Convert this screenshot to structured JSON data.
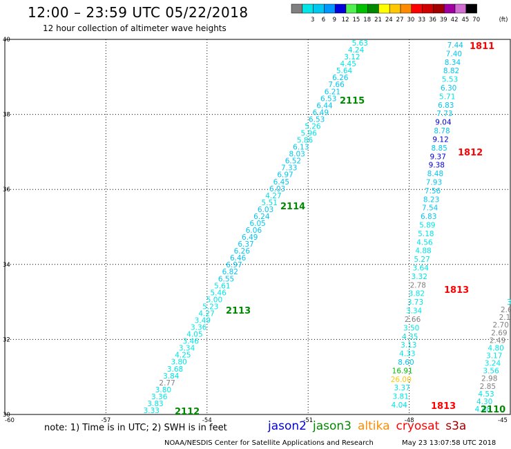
{
  "header": {
    "title": "12:00 – 23:59 UTC 05/22/2018",
    "subtitle": "12 hour collection of altimeter wave heights"
  },
  "legend": {
    "unit": "(ft)",
    "bins": [
      {
        "label": "",
        "color": "#808080"
      },
      {
        "label": "3",
        "color": "#00e5e5"
      },
      {
        "label": "6",
        "color": "#00c8f0"
      },
      {
        "label": "9",
        "color": "#0096ff"
      },
      {
        "label": "12",
        "color": "#0000dd"
      },
      {
        "label": "15",
        "color": "#50f050"
      },
      {
        "label": "18",
        "color": "#00c000"
      },
      {
        "label": "21",
        "color": "#008800"
      },
      {
        "label": "24",
        "color": "#ffff00"
      },
      {
        "label": "27",
        "color": "#ffc800"
      },
      {
        "label": "30",
        "color": "#ff8c00"
      },
      {
        "label": "33",
        "color": "#ff0000"
      },
      {
        "label": "36",
        "color": "#d00000"
      },
      {
        "label": "39",
        "color": "#a00000"
      },
      {
        "label": "42",
        "color": "#a000a0"
      },
      {
        "label": "45",
        "color": "#d26ed2"
      },
      {
        "label": "70",
        "color": "#000000"
      }
    ]
  },
  "axes": {
    "lon_ticks": [
      "-60",
      "-57",
      "-54",
      "-51",
      "-48",
      "-45"
    ],
    "lat_ticks": [
      "30",
      "32",
      "34",
      "36",
      "38",
      "40"
    ],
    "lon_range": [
      -60,
      -45
    ],
    "lat_range": [
      30,
      40
    ]
  },
  "track_labels": [
    {
      "text": "2115",
      "color": "#008800"
    },
    {
      "text": "2114",
      "color": "#008800"
    },
    {
      "text": "2113",
      "color": "#008800"
    },
    {
      "text": "2112",
      "color": "#008800"
    },
    {
      "text": "1811",
      "color": "#ff0000"
    },
    {
      "text": "1812",
      "color": "#ff0000"
    },
    {
      "text": "1813",
      "color": "#ff0000"
    },
    {
      "text": "1813",
      "color": "#ff0000"
    },
    {
      "text": "2110",
      "color": "#008800"
    }
  ],
  "tracks": [
    {
      "name": "jason3 descending track",
      "values": [
        {
          "v": "5.63",
          "c": "#00e5e5"
        },
        {
          "v": "4.24",
          "c": "#00e5e5"
        },
        {
          "v": "3.12",
          "c": "#00e5e5"
        },
        {
          "v": "4.45",
          "c": "#00e5e5"
        },
        {
          "v": "5.64",
          "c": "#00e5e5"
        },
        {
          "v": "6.26",
          "c": "#00c8f0"
        },
        {
          "v": "7.66",
          "c": "#00c8f0"
        },
        {
          "v": "6.21",
          "c": "#00c8f0"
        },
        {
          "v": "6.53",
          "c": "#00c8f0"
        },
        {
          "v": "6.44",
          "c": "#00c8f0"
        },
        {
          "v": "6.49",
          "c": "#00c8f0"
        },
        {
          "v": "6.53",
          "c": "#00c8f0"
        },
        {
          "v": "5.26",
          "c": "#00e5e5"
        },
        {
          "v": "5.96",
          "c": "#00e5e5"
        },
        {
          "v": "5.86",
          "c": "#00e5e5"
        },
        {
          "v": "6.13",
          "c": "#00c8f0"
        },
        {
          "v": "8.03",
          "c": "#00c8f0"
        },
        {
          "v": "6.52",
          "c": "#00c8f0"
        },
        {
          "v": "7.33",
          "c": "#00c8f0"
        },
        {
          "v": "6.97",
          "c": "#00c8f0"
        },
        {
          "v": "6.45",
          "c": "#00c8f0"
        },
        {
          "v": "6.03",
          "c": "#00c8f0"
        },
        {
          "v": "4.27",
          "c": "#00e5e5"
        },
        {
          "v": "5.51",
          "c": "#00e5e5"
        },
        {
          "v": "6.03",
          "c": "#00c8f0"
        },
        {
          "v": "6.24",
          "c": "#00c8f0"
        },
        {
          "v": "6.05",
          "c": "#00c8f0"
        },
        {
          "v": "6.06",
          "c": "#00c8f0"
        },
        {
          "v": "6.49",
          "c": "#00c8f0"
        },
        {
          "v": "6.37",
          "c": "#00c8f0"
        },
        {
          "v": "6.26",
          "c": "#00c8f0"
        },
        {
          "v": "6.46",
          "c": "#00c8f0"
        },
        {
          "v": "6.97",
          "c": "#00c8f0"
        },
        {
          "v": "6.82",
          "c": "#00c8f0"
        },
        {
          "v": "6.55",
          "c": "#00c8f0"
        },
        {
          "v": "5.61",
          "c": "#00e5e5"
        },
        {
          "v": "5.46",
          "c": "#00e5e5"
        },
        {
          "v": "5.00",
          "c": "#00e5e5"
        },
        {
          "v": "5.23",
          "c": "#00e5e5"
        },
        {
          "v": "4.27",
          "c": "#00e5e5"
        },
        {
          "v": "3.49",
          "c": "#00e5e5"
        },
        {
          "v": "3.36",
          "c": "#00e5e5"
        },
        {
          "v": "4.05",
          "c": "#00e5e5"
        },
        {
          "v": "3.46",
          "c": "#00e5e5"
        },
        {
          "v": "3.34",
          "c": "#00e5e5"
        },
        {
          "v": "4.25",
          "c": "#00e5e5"
        },
        {
          "v": "3.80",
          "c": "#00e5e5"
        },
        {
          "v": "3.68",
          "c": "#00e5e5"
        },
        {
          "v": "3.84",
          "c": "#00e5e5"
        },
        {
          "v": "2.77",
          "c": "#808080"
        },
        {
          "v": "3.80",
          "c": "#00e5e5"
        },
        {
          "v": "3.36",
          "c": "#00e5e5"
        },
        {
          "v": "3.83",
          "c": "#00e5e5"
        },
        {
          "v": "3.33",
          "c": "#00e5e5"
        }
      ]
    },
    {
      "name": "cryosat track",
      "values": [
        {
          "v": "7.44",
          "c": "#00c8f0"
        },
        {
          "v": "7.40",
          "c": "#00c8f0"
        },
        {
          "v": "8.34",
          "c": "#00c8f0"
        },
        {
          "v": "8.82",
          "c": "#00c8f0"
        },
        {
          "v": "5.53",
          "c": "#00e5e5"
        },
        {
          "v": "6.30",
          "c": "#00c8f0"
        },
        {
          "v": "5.71",
          "c": "#00e5e5"
        },
        {
          "v": "6.83",
          "c": "#00c8f0"
        },
        {
          "v": "7.73",
          "c": "#00c8f0"
        },
        {
          "v": "9.04",
          "c": "#0000dd"
        },
        {
          "v": "8.78",
          "c": "#00c8f0"
        },
        {
          "v": "9.12",
          "c": "#0000dd"
        },
        {
          "v": "8.85",
          "c": "#00c8f0"
        },
        {
          "v": "9.37",
          "c": "#0000dd"
        },
        {
          "v": "9.38",
          "c": "#0000dd"
        },
        {
          "v": "8.48",
          "c": "#00c8f0"
        },
        {
          "v": "7.93",
          "c": "#00c8f0"
        },
        {
          "v": "7.56",
          "c": "#00c8f0"
        },
        {
          "v": "8.23",
          "c": "#00c8f0"
        },
        {
          "v": "7.54",
          "c": "#00c8f0"
        },
        {
          "v": "6.83",
          "c": "#00c8f0"
        },
        {
          "v": "5.89",
          "c": "#00e5e5"
        },
        {
          "v": "5.18",
          "c": "#00e5e5"
        },
        {
          "v": "4.56",
          "c": "#00e5e5"
        },
        {
          "v": "4.88",
          "c": "#00e5e5"
        },
        {
          "v": "5.27",
          "c": "#00e5e5"
        },
        {
          "v": "3.64",
          "c": "#00e5e5"
        },
        {
          "v": "3.32",
          "c": "#00e5e5"
        },
        {
          "v": "2.78",
          "c": "#808080"
        },
        {
          "v": "3.82",
          "c": "#00e5e5"
        },
        {
          "v": "3.73",
          "c": "#00e5e5"
        },
        {
          "v": "3.34",
          "c": "#00e5e5"
        },
        {
          "v": "2.66",
          "c": "#808080"
        },
        {
          "v": "3.50",
          "c": "#00e5e5"
        },
        {
          "v": "4.35",
          "c": "#00e5e5"
        },
        {
          "v": "3.13",
          "c": "#00e5e5"
        },
        {
          "v": "4.33",
          "c": "#00e5e5"
        },
        {
          "v": "8.60",
          "c": "#00c8f0"
        },
        {
          "v": "16.91",
          "c": "#00c000"
        },
        {
          "v": "26.00",
          "c": "#ffc800"
        },
        {
          "v": "3.37",
          "c": "#00e5e5"
        },
        {
          "v": "3.81",
          "c": "#00e5e5"
        },
        {
          "v": "4.04",
          "c": "#00e5e5"
        }
      ]
    },
    {
      "name": "jason3 ascending track",
      "values": [
        {
          "v": "4.48",
          "c": "#00e5e5"
        },
        {
          "v": "4.30",
          "c": "#00e5e5"
        },
        {
          "v": "4.53",
          "c": "#00e5e5"
        },
        {
          "v": "2.85",
          "c": "#808080"
        },
        {
          "v": "2.98",
          "c": "#808080"
        },
        {
          "v": "3.56",
          "c": "#00e5e5"
        },
        {
          "v": "3.24",
          "c": "#00e5e5"
        },
        {
          "v": "3.17",
          "c": "#00e5e5"
        },
        {
          "v": "4.80",
          "c": "#00e5e5"
        },
        {
          "v": "2.49",
          "c": "#808080"
        },
        {
          "v": "2.69",
          "c": "#808080"
        },
        {
          "v": "2.70",
          "c": "#808080"
        },
        {
          "v": "2.1",
          "c": "#808080"
        },
        {
          "v": "2.6",
          "c": "#808080"
        },
        {
          "v": "3.",
          "c": "#00e5e5"
        }
      ]
    }
  ],
  "footer": {
    "note": "note:  1) Time is in UTC;  2) SWH is in feet",
    "satellites": [
      {
        "name": "jason2",
        "color": "#0000dd"
      },
      {
        "name": "jason3",
        "color": "#008800"
      },
      {
        "name": "altika",
        "color": "#ff8c00"
      },
      {
        "name": "cryosat",
        "color": "#ff0000"
      },
      {
        "name": "s3a",
        "color": "#a00000"
      }
    ],
    "credit": "NOAA/NESDIS Center for Satellite Applications and Research",
    "timestamp": "May 23 13:07:58 UTC 2018"
  }
}
